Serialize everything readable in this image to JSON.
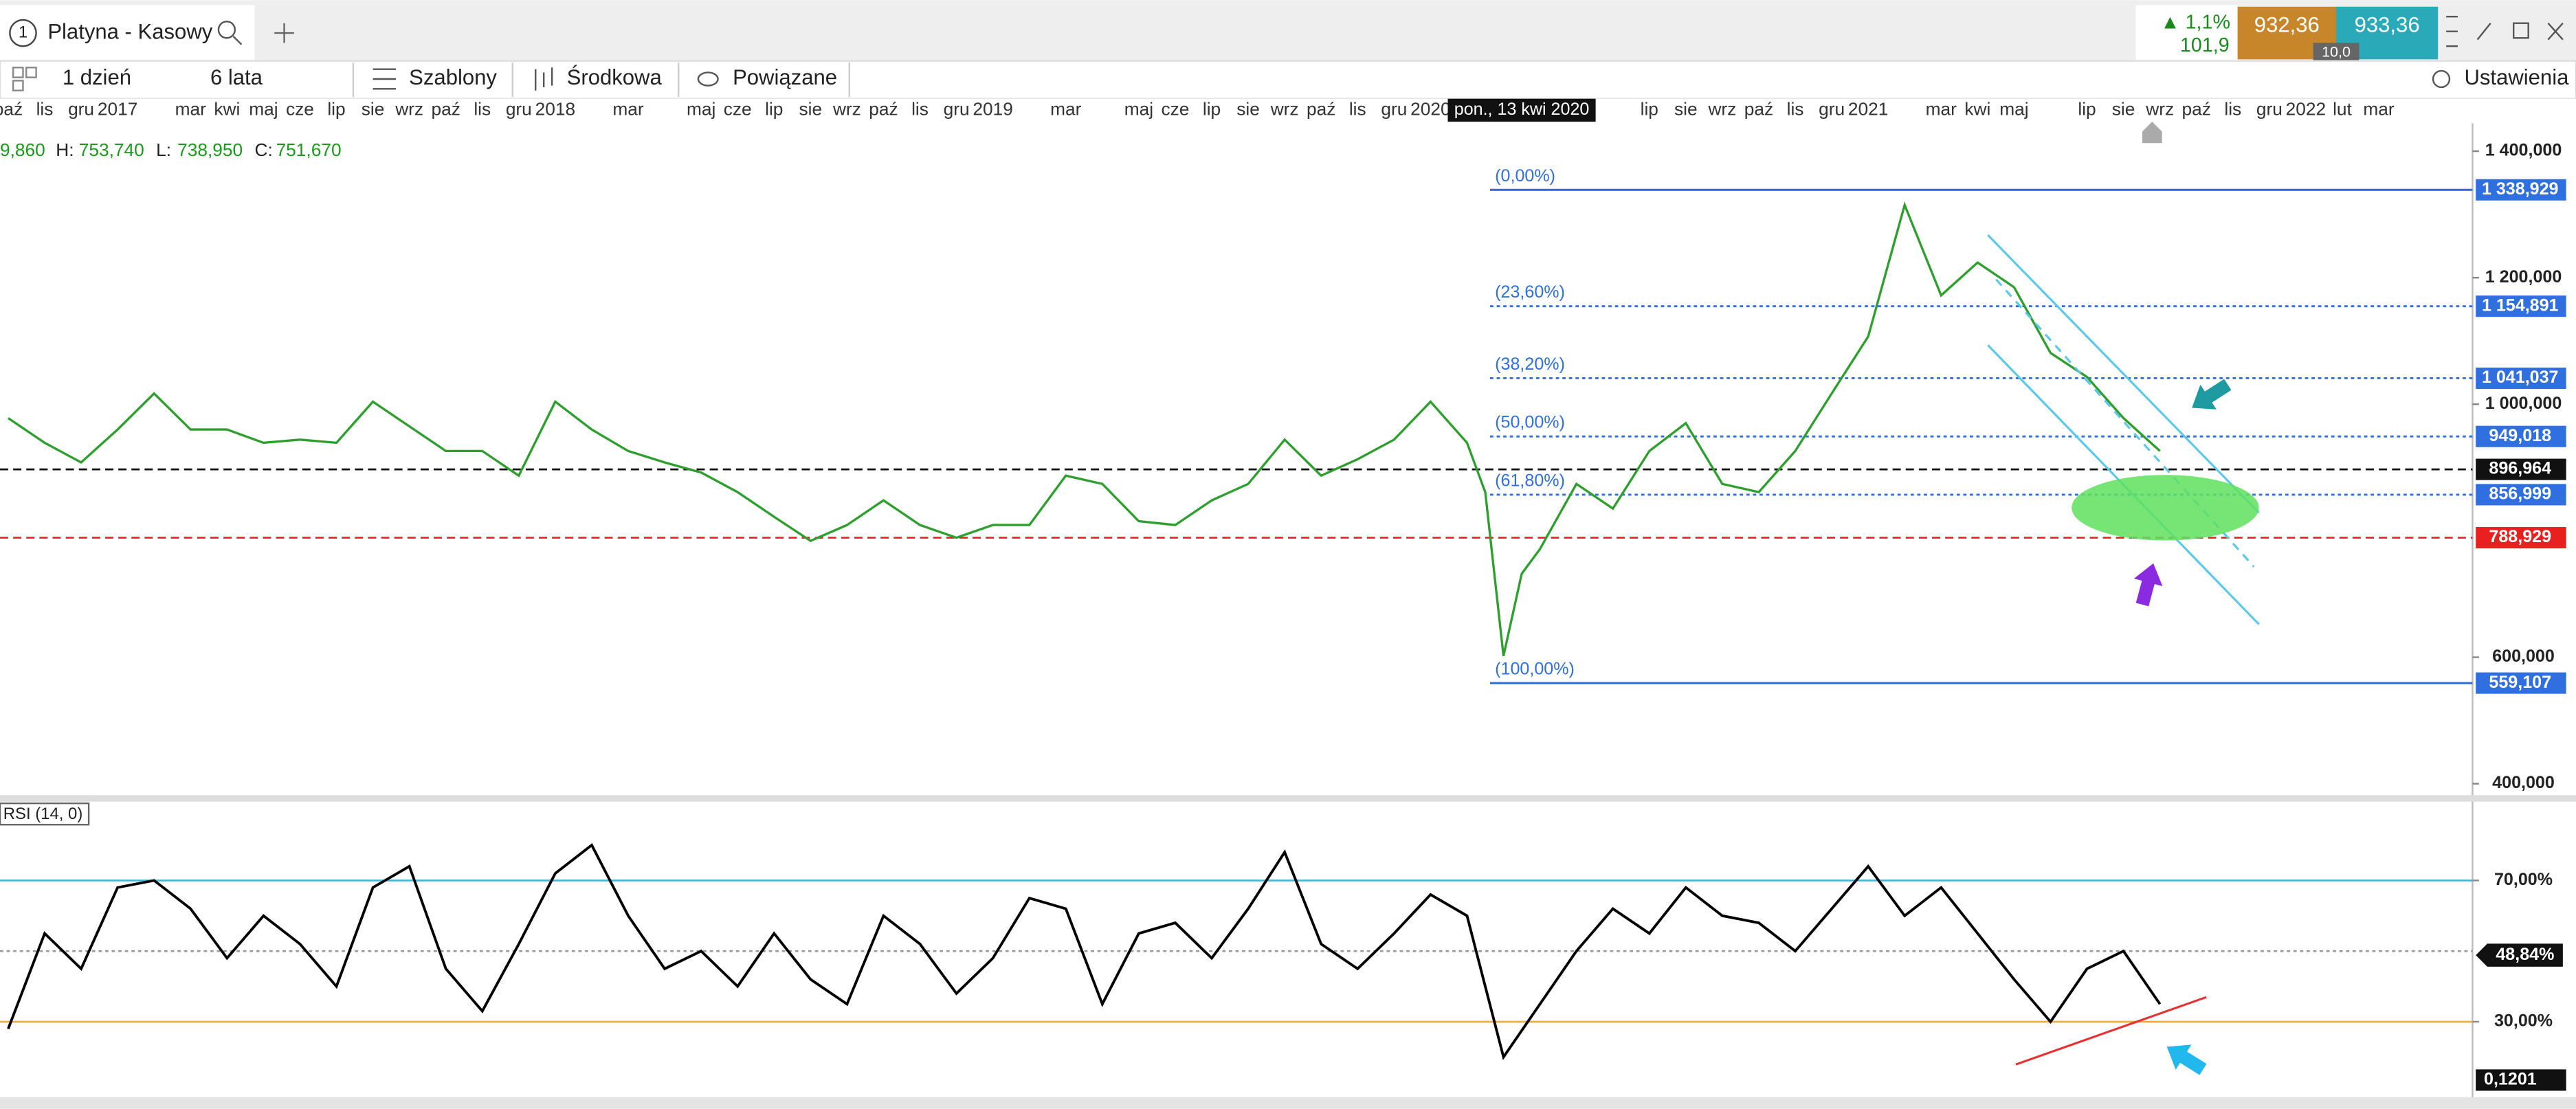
{
  "tab": {
    "number": "1",
    "title": "Platyna - Kasowy"
  },
  "quote": {
    "change": "▲ 1,1%",
    "index": "101,9",
    "bid": "932,36",
    "ask": "933,36",
    "spread": "10,0"
  },
  "toolbar": {
    "interval": "1 dzień",
    "range": "6 lata",
    "templates": "Szablony",
    "indicators": "Środkowa",
    "related": "Powiązane",
    "settings": "Ustawienia"
  },
  "ohlc": {
    "open": "9,860",
    "high_label": "H:",
    "high": "753,740",
    "low_label": "L:",
    "low": "738,950",
    "close_label": "C:",
    "close": "751,670"
  },
  "chart_data": [
    {
      "type": "line",
      "color": "#2e9e2e",
      "x": [
        0,
        1,
        2,
        3,
        4,
        5,
        6,
        7,
        8,
        9,
        10,
        11,
        12,
        13,
        14,
        15,
        16,
        17,
        18,
        19,
        20,
        21,
        22,
        23,
        24,
        25,
        26,
        27,
        28,
        29,
        30,
        31,
        32,
        33,
        34,
        35,
        36,
        37,
        38,
        39,
        40,
        40.5,
        41,
        41.5,
        42,
        43,
        44,
        45,
        46,
        47,
        48,
        49,
        50,
        51,
        52,
        53,
        54,
        55,
        56,
        57,
        58,
        59
      ],
      "values": [
        978000,
        939000,
        908000,
        960000,
        1017000,
        960000,
        960000,
        939000,
        944000,
        939000,
        1004000,
        965000,
        926000,
        926000,
        887000,
        1004000,
        960000,
        926000,
        908000,
        892000,
        861000,
        822000,
        784000,
        809000,
        848000,
        809000,
        789000,
        809000,
        809000,
        887000,
        874000,
        815000,
        809000,
        848000,
        874000,
        944000,
        887000,
        913000,
        944000,
        1004000,
        939000,
        861000,
        602000,
        732000,
        771000,
        874000,
        835000,
        926000,
        970000,
        874000,
        861000,
        926000,
        1017000,
        1107000,
        1315000,
        1172000,
        1224000,
        1185000,
        1081000,
        1043000,
        978000,
        926000
      ],
      "xlim": [
        -0.225,
        67.57
      ],
      "xticks": [
        {
          "value": 0,
          "label": "paź"
        },
        {
          "value": 1,
          "label": "lis"
        },
        {
          "value": 2,
          "label": "gru"
        },
        {
          "value": 3,
          "label": "2017"
        },
        {
          "value": 5,
          "label": "mar"
        },
        {
          "value": 6,
          "label": "kwi"
        },
        {
          "value": 7,
          "label": "maj"
        },
        {
          "value": 8,
          "label": "cze"
        },
        {
          "value": 9,
          "label": "lip"
        },
        {
          "value": 10,
          "label": "sie"
        },
        {
          "value": 11,
          "label": "wrz"
        },
        {
          "value": 12,
          "label": "paź"
        },
        {
          "value": 13,
          "label": "lis"
        },
        {
          "value": 14,
          "label": "gru"
        },
        {
          "value": 15,
          "label": "2018"
        },
        {
          "value": 17,
          "label": "mar"
        },
        {
          "value": 19,
          "label": "maj"
        },
        {
          "value": 20,
          "label": "cze"
        },
        {
          "value": 21,
          "label": "lip"
        },
        {
          "value": 22,
          "label": "sie"
        },
        {
          "value": 23,
          "label": "wrz"
        },
        {
          "value": 24,
          "label": "paź"
        },
        {
          "value": 25,
          "label": "lis"
        },
        {
          "value": 26,
          "label": "gru"
        },
        {
          "value": 27,
          "label": "2019"
        },
        {
          "value": 29,
          "label": "mar"
        },
        {
          "value": 31,
          "label": "maj"
        },
        {
          "value": 32,
          "label": "cze"
        },
        {
          "value": 33,
          "label": "lip"
        },
        {
          "value": 34,
          "label": "sie"
        },
        {
          "value": 35,
          "label": "wrz"
        },
        {
          "value": 36,
          "label": "paź"
        },
        {
          "value": 37,
          "label": "lis"
        },
        {
          "value": 38,
          "label": "gru"
        },
        {
          "value": 39,
          "label": "2020"
        },
        {
          "value": 45,
          "label": "lip"
        },
        {
          "value": 46,
          "label": "sie"
        },
        {
          "value": 47,
          "label": "wrz"
        },
        {
          "value": 48,
          "label": "paź"
        },
        {
          "value": 49,
          "label": "lis"
        },
        {
          "value": 50,
          "label": "gru"
        },
        {
          "value": 51,
          "label": "2021"
        },
        {
          "value": 53,
          "label": "mar"
        },
        {
          "value": 54,
          "label": "kwi"
        },
        {
          "value": 55,
          "label": "maj"
        },
        {
          "value": 57,
          "label": "lip"
        },
        {
          "value": 58,
          "label": "sie"
        },
        {
          "value": 59,
          "label": "wrz"
        },
        {
          "value": 60,
          "label": "paź"
        },
        {
          "value": 61,
          "label": "lis"
        },
        {
          "value": 62,
          "label": "gru"
        },
        {
          "value": 63,
          "label": "2022"
        },
        {
          "value": 64,
          "label": "lut"
        },
        {
          "value": 65,
          "label": "mar"
        }
      ],
      "crosshair": {
        "value": 41.5,
        "label": "pon., 13 kwi 2020"
      },
      "ylim": [
        382000,
        1444000
      ],
      "yticks": [
        {
          "value": 1400000,
          "label": "1 400,000"
        },
        {
          "value": 1200000,
          "label": "1 200,000"
        },
        {
          "value": 1000000,
          "label": "1 000,000"
        },
        {
          "value": 600000,
          "label": "600,000"
        },
        {
          "value": 400000,
          "label": "400,000"
        }
      ],
      "fib_levels": [
        {
          "label": "(0,00%)",
          "value": 1338929,
          "value_label": "1 338,929"
        },
        {
          "label": "(23,60%)",
          "value": 1154891,
          "value_label": "1 154,891"
        },
        {
          "label": "(38,20%)",
          "value": 1041037,
          "value_label": "1 041,037"
        },
        {
          "label": "(50,00%)",
          "value": 949018,
          "value_label": "949,018"
        },
        {
          "label": "(61,80%)",
          "value": 856999,
          "value_label": "856,999"
        },
        {
          "label": "(100,00%)",
          "value": 559107,
          "value_label": "559,107"
        }
      ],
      "fib_color": "#2f6fe0",
      "levels": [
        {
          "value": 896964,
          "value_label": "896,964",
          "color": "#111111"
        },
        {
          "value": 788929,
          "value_label": "788,929",
          "color": "#e82020"
        }
      ]
    },
    {
      "type": "line",
      "title": "RSI (14, 0)",
      "color": "#000000",
      "x": [
        0,
        1,
        2,
        3,
        4,
        5,
        6,
        7,
        8,
        9,
        10,
        11,
        12,
        13,
        14,
        15,
        16,
        17,
        18,
        19,
        20,
        21,
        22,
        23,
        24,
        25,
        26,
        27,
        28,
        29,
        30,
        31,
        32,
        33,
        34,
        35,
        36,
        37,
        38,
        39,
        40,
        41,
        42,
        43,
        44,
        45,
        46,
        47,
        48,
        49,
        50,
        51,
        52,
        53,
        54,
        55,
        56,
        57,
        58,
        59
      ],
      "values": [
        28,
        55,
        45,
        68,
        70,
        62,
        48,
        60,
        52,
        40,
        68,
        74,
        45,
        33,
        52,
        72,
        80,
        60,
        45,
        50,
        40,
        55,
        42,
        35,
        60,
        52,
        38,
        48,
        65,
        62,
        35,
        55,
        58,
        48,
        62,
        78,
        52,
        45,
        55,
        66,
        60,
        20,
        35,
        50,
        62,
        55,
        68,
        60,
        58,
        50,
        62,
        74,
        60,
        68,
        55,
        42,
        30,
        45,
        50,
        35
      ],
      "xlim": [
        -0.225,
        67.57
      ],
      "ylim": [
        10,
        92.3
      ],
      "yticks": [
        {
          "value": 70,
          "label": "70,00%"
        },
        {
          "value": 30,
          "label": "30,00%"
        }
      ],
      "levels": [
        {
          "value": 70,
          "color": "#3bb8d8"
        },
        {
          "value": 50,
          "color": "#999999"
        },
        {
          "value": 30,
          "color": "#f0a830"
        }
      ],
      "current": {
        "value": 48.84,
        "label": "48,84%"
      },
      "bottom_label": "0,1201"
    }
  ]
}
